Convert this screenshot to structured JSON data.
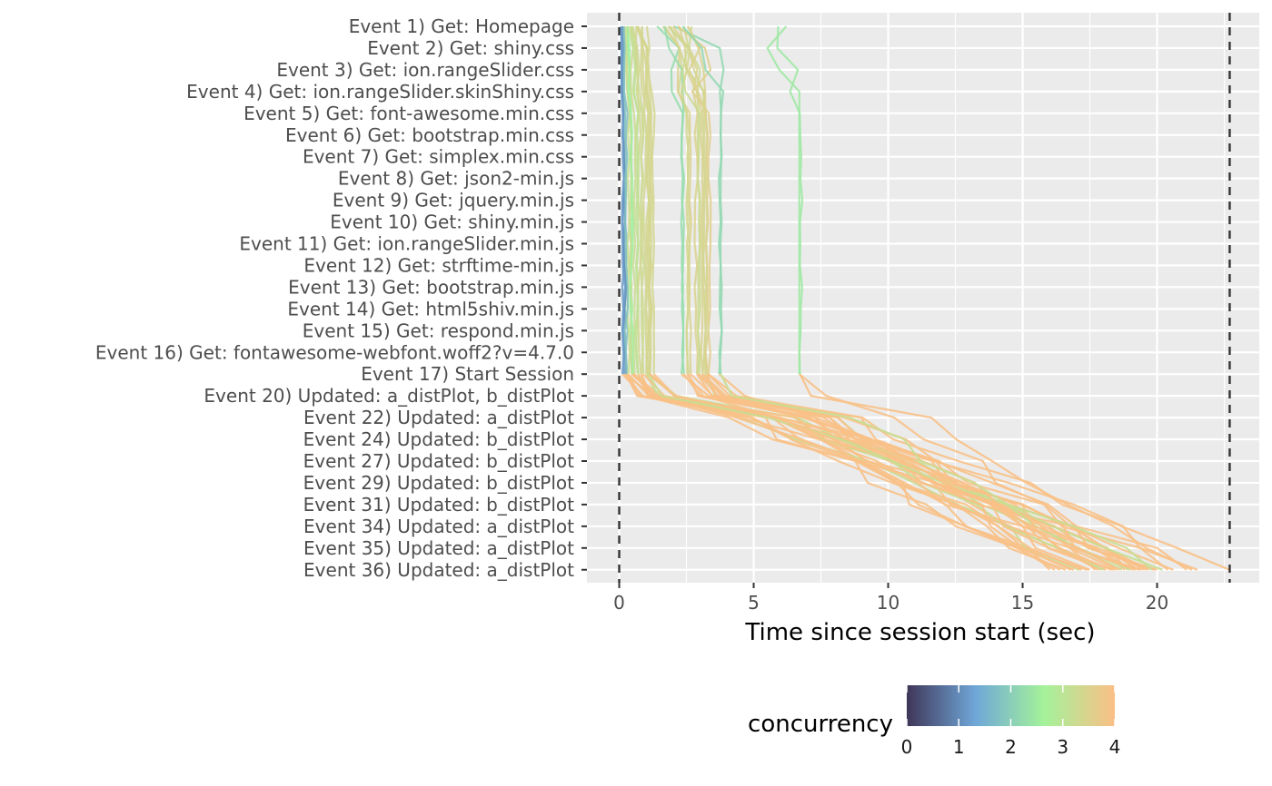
{
  "colors": {
    "panel_background": "#ebebeb",
    "grid": "#ffffff",
    "reference_line": "#333333",
    "gradient": [
      "#3f3658",
      "#6fa7d8",
      "#a4f29a",
      "#fbbf86"
    ]
  },
  "chart_data": {
    "type": "line",
    "xlabel": "Time since session start (sec)",
    "xlim": [
      -1.2,
      23.8
    ],
    "x_ticks": [
      0,
      5,
      10,
      15,
      20
    ],
    "x_tick_labels": [
      "0",
      "5",
      "10",
      "15",
      "20"
    ],
    "grid": true,
    "reference_lines_x": [
      0,
      22.7
    ],
    "categories": [
      "Event 1) Get: Homepage",
      "Event 2) Get: shiny.css",
      "Event 3) Get: ion.rangeSlider.css",
      "Event 4) Get: ion.rangeSlider.skinShiny.css",
      "Event 5) Get: font-awesome.min.css",
      "Event 6) Get: bootstrap.min.css",
      "Event 7) Get: simplex.min.css",
      "Event 8) Get: json2-min.js",
      "Event 9) Get: jquery.min.js",
      "Event 10) Get: shiny.min.js",
      "Event 11) Get: ion.rangeSlider.min.js",
      "Event 12) Get: strftime-min.js",
      "Event 13) Get: bootstrap.min.js",
      "Event 14) Get: html5shiv.min.js",
      "Event 15) Get: respond.min.js",
      "Event 16) Get: fontawesome-webfont.woff2?v=4.7.0",
      "Event 17) Start Session",
      "Event 20) Updated: a_distPlot, b_distPlot",
      "Event 22) Updated: a_distPlot",
      "Event 24) Updated: b_distPlot",
      "Event 27) Updated: b_distPlot",
      "Event 29) Updated: b_distPlot",
      "Event 31) Updated: b_distPlot",
      "Event 34) Updated: a_distPlot",
      "Event 35) Updated: a_distPlot",
      "Event 36) Updated: a_distPlot"
    ],
    "series_note_count": 40,
    "setup_end_times": [
      0.1,
      0.2,
      0.4,
      0.6,
      0.8,
      1.0,
      1.1,
      2.3,
      2.5,
      2.9,
      3.1,
      3.2,
      3.7,
      6.7,
      0.3,
      0.5,
      0.7,
      0.9,
      1.2,
      2.6,
      3.0,
      3.3,
      0.15,
      0.35,
      1.05,
      2.8
    ],
    "setup_concurrency": [
      1.2,
      1.8,
      2.6,
      3.1,
      3.3,
      3.4,
      3.4,
      2.3,
      3.4,
      3.3,
      3.4,
      3.5,
      2.2,
      2.5,
      3.2,
      3.3,
      3.4,
      3.4,
      3.4,
      3.5,
      3.5,
      3.6,
      1.0,
      3.3,
      3.4,
      3.5
    ],
    "session_end_times": [
      16.0,
      16.4,
      16.8,
      17.1,
      17.4,
      17.7,
      17.9,
      18.1,
      18.3,
      18.5,
      18.7,
      18.9,
      19.1,
      19.3,
      19.5,
      19.7,
      19.9,
      20.2,
      20.6,
      21.1,
      21.5,
      22.7,
      16.2,
      17.2,
      18.0,
      18.8,
      19.4,
      20.0,
      16.6,
      17.5,
      18.4,
      19.0,
      19.6,
      20.4,
      16.9,
      17.8,
      18.6,
      19.2,
      19.8,
      21.3
    ],
    "legend": {
      "title": "concurrency",
      "range": [
        0,
        4
      ],
      "ticks": [
        0,
        1,
        2,
        3,
        4
      ],
      "tick_labels": [
        "0",
        "1",
        "2",
        "3",
        "4"
      ],
      "position": "bottom"
    }
  }
}
